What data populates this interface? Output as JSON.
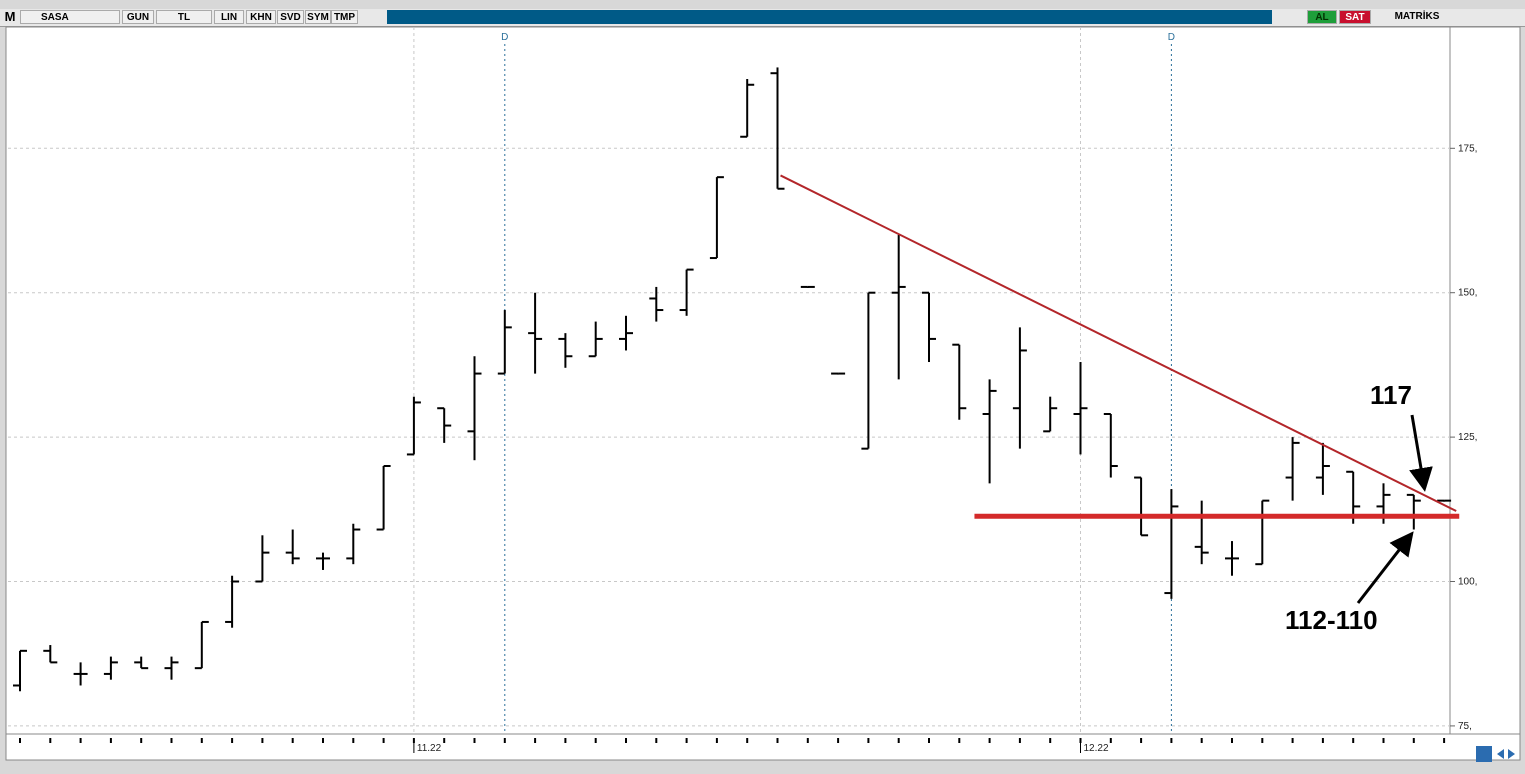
{
  "toolbar": {
    "mode": "M",
    "symbol": "SASA",
    "buttons": [
      "GUN",
      "TL",
      "LIN",
      "KHN",
      "SVD",
      "SYM",
      "TMP"
    ],
    "buy": "AL",
    "sell": "SAT",
    "brand": "MATRİKS"
  },
  "chart_data": {
    "type": "ohlc",
    "color": "#000000",
    "categories": [
      null,
      null,
      null,
      null,
      null,
      null,
      null,
      null,
      null,
      null,
      null,
      null,
      null,
      "11.22",
      null,
      null,
      null,
      null,
      null,
      null,
      null,
      null,
      null,
      null,
      null,
      null,
      null,
      null,
      null,
      null,
      null,
      null,
      null,
      null,
      null,
      "12.22",
      null,
      null,
      null,
      null,
      null,
      null,
      null,
      null,
      null,
      null,
      null,
      null
    ],
    "open": [
      82,
      88,
      84,
      84,
      86,
      85,
      85,
      93,
      100,
      105,
      104,
      104,
      109,
      122,
      130,
      126,
      136,
      143,
      142,
      139,
      142,
      149,
      147,
      156,
      177,
      188,
      151,
      136,
      123,
      150,
      150,
      141,
      129,
      130,
      126,
      129,
      129,
      118,
      98,
      106,
      104,
      103,
      118,
      118,
      119,
      113,
      115,
      114
    ],
    "high": [
      88,
      89,
      86,
      87,
      87,
      87,
      93,
      101,
      108,
      109,
      105,
      110,
      120,
      132,
      130,
      139,
      147,
      150,
      143,
      145,
      146,
      151,
      154,
      170,
      187,
      189,
      151,
      136,
      150,
      160,
      150,
      141,
      135,
      144,
      132,
      138,
      129,
      118,
      116,
      114,
      107,
      114,
      125,
      124,
      119,
      117,
      115,
      114
    ],
    "low": [
      81,
      86,
      82,
      83,
      85,
      83,
      85,
      92,
      100,
      103,
      102,
      103,
      109,
      122,
      124,
      121,
      136,
      136,
      137,
      139,
      140,
      145,
      146,
      156,
      177,
      168,
      151,
      136,
      123,
      135,
      138,
      128,
      117,
      123,
      126,
      122,
      118,
      108,
      97,
      103,
      101,
      103,
      114,
      115,
      110,
      110,
      109,
      114
    ],
    "close": [
      88,
      86,
      84,
      86,
      85,
      86,
      93,
      100,
      105,
      104,
      104,
      109,
      120,
      131,
      127,
      136,
      144,
      142,
      139,
      142,
      143,
      147,
      154,
      170,
      186,
      168,
      151,
      136,
      150,
      151,
      142,
      130,
      133,
      140,
      130,
      130,
      120,
      108,
      113,
      105,
      104,
      114,
      124,
      120,
      113,
      115,
      114,
      114
    ],
    "ylim": [
      73.6,
      196
    ],
    "yticks": [
      {
        "value": 75,
        "label": "75,"
      },
      {
        "value": 100,
        "label": "100,"
      },
      {
        "value": 125,
        "label": "125,"
      },
      {
        "value": 150,
        "label": "150,"
      },
      {
        "value": 175,
        "label": "175,"
      }
    ],
    "grid": true,
    "markers": [
      {
        "label": "D",
        "x": 16
      },
      {
        "label": "D",
        "x": 38
      }
    ],
    "trend_lines": [
      {
        "color": "#b3262a",
        "x": [
          25.1,
          47.4
        ],
        "y": [
          170.3,
          112.2
        ]
      },
      {
        "color": "#d42a2a",
        "x": [
          31.5,
          47.5
        ],
        "y": [
          111.3,
          111.3
        ]
      }
    ],
    "annotations": [
      {
        "text": "117"
      },
      {
        "text": "112-110"
      }
    ]
  }
}
